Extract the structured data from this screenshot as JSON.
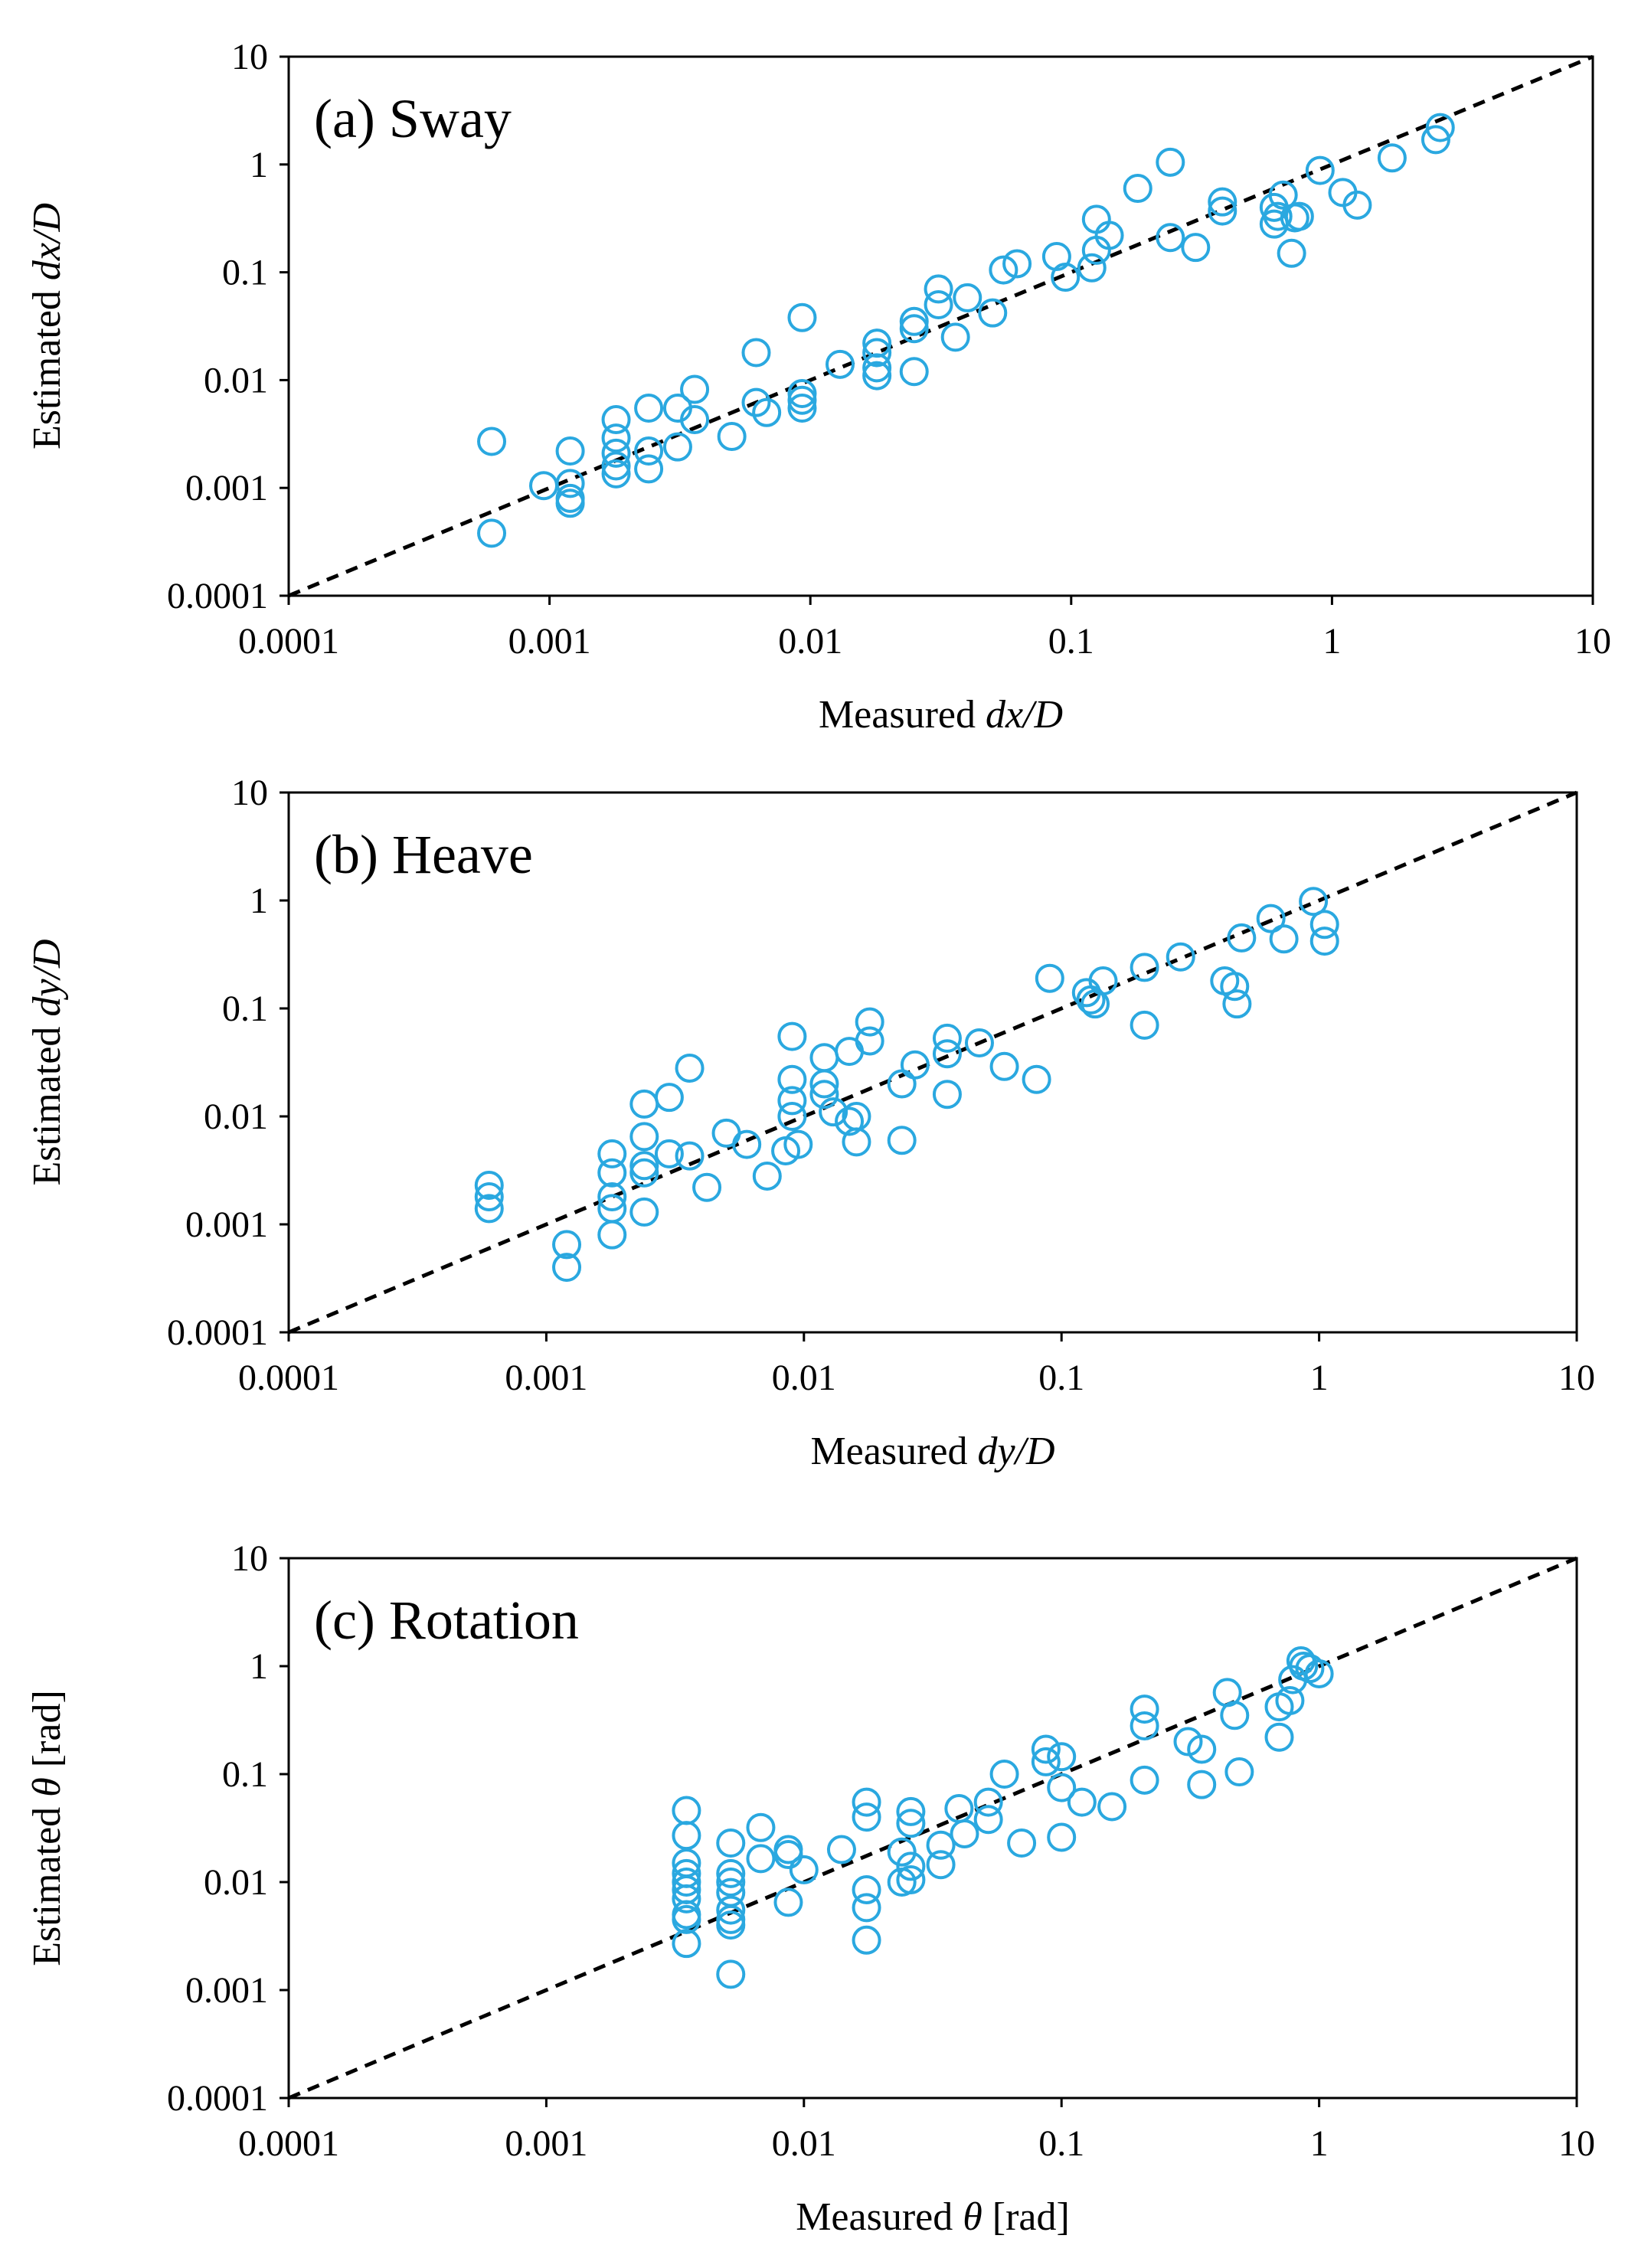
{
  "chart_data": [
    {
      "type": "scatter",
      "title": "(a) Sway",
      "xlabel": [
        "Measured ",
        "dx/D"
      ],
      "ylabel": [
        "Estimated ",
        "dx/D"
      ],
      "xscale": "log",
      "yscale": "log",
      "xlim": [
        0.0001,
        10
      ],
      "ylim": [
        0.0001,
        10
      ],
      "xticks": [
        "0.0001",
        "0.001",
        "0.01",
        "0.1",
        "1",
        "10"
      ],
      "yticks": [
        "0.0001",
        "0.001",
        "0.01",
        "0.1",
        "1",
        "10"
      ],
      "grid": false,
      "reference_line": "y = x (dashed)",
      "marker_color": "#2AA8E0",
      "x": [
        0.0006,
        0.0006,
        0.00095,
        0.0012,
        0.0012,
        0.0012,
        0.0012,
        0.0018,
        0.0018,
        0.0018,
        0.0018,
        0.0018,
        0.0024,
        0.0024,
        0.0024,
        0.0031,
        0.0031,
        0.0036,
        0.0036,
        0.005,
        0.0062,
        0.0062,
        0.0068,
        0.0093,
        0.0093,
        0.0093,
        0.0093,
        0.013,
        0.018,
        0.018,
        0.018,
        0.018,
        0.025,
        0.025,
        0.025,
        0.031,
        0.031,
        0.036,
        0.04,
        0.05,
        0.055,
        0.062,
        0.088,
        0.095,
        0.12,
        0.125,
        0.125,
        0.14,
        0.24,
        0.24,
        0.18,
        0.3,
        0.38,
        0.38,
        0.6,
        0.6,
        0.62,
        0.65,
        0.7,
        0.72,
        0.75,
        0.9,
        1.1,
        1.25,
        1.7,
        2.5,
        2.6
      ],
      "y": [
        0.0027,
        0.00038,
        0.00105,
        0.0022,
        0.0011,
        0.0008,
        0.00072,
        0.0043,
        0.0029,
        0.0021,
        0.0016,
        0.00135,
        0.0055,
        0.0022,
        0.0015,
        0.0055,
        0.0024,
        0.0082,
        0.0043,
        0.003,
        0.018,
        0.0062,
        0.005,
        0.038,
        0.0075,
        0.0065,
        0.0055,
        0.014,
        0.022,
        0.018,
        0.013,
        0.011,
        0.035,
        0.03,
        0.012,
        0.07,
        0.05,
        0.025,
        0.058,
        0.042,
        0.105,
        0.12,
        0.14,
        0.09,
        0.11,
        0.31,
        0.16,
        0.22,
        1.05,
        0.21,
        0.6,
        0.17,
        0.45,
        0.37,
        0.4,
        0.28,
        0.33,
        0.52,
        0.15,
        0.32,
        0.33,
        0.88,
        0.55,
        0.42,
        1.15,
        1.7,
        2.2
      ]
    },
    {
      "type": "scatter",
      "title": "(b) Heave",
      "xlabel": [
        "Measured ",
        "dy/D"
      ],
      "ylabel": [
        "Estimated ",
        "dy/D"
      ],
      "xscale": "log",
      "yscale": "log",
      "xlim": [
        0.0001,
        10
      ],
      "ylim": [
        0.0001,
        10
      ],
      "xticks": [
        "0.0001",
        "0.001",
        "0.01",
        "0.1",
        "1",
        "10"
      ],
      "yticks": [
        "0.0001",
        "0.001",
        "0.01",
        "0.1",
        "1",
        "10"
      ],
      "grid": false,
      "reference_line": "y = x (dashed)",
      "marker_color": "#2AA8E0",
      "x": [
        0.0006,
        0.0006,
        0.0006,
        0.0012,
        0.0012,
        0.0018,
        0.0018,
        0.0018,
        0.0018,
        0.0018,
        0.0024,
        0.0024,
        0.0024,
        0.0024,
        0.0024,
        0.003,
        0.003,
        0.0036,
        0.0036,
        0.0042,
        0.005,
        0.006,
        0.0072,
        0.0085,
        0.009,
        0.009,
        0.009,
        0.009,
        0.0095,
        0.012,
        0.012,
        0.012,
        0.013,
        0.015,
        0.015,
        0.016,
        0.016,
        0.018,
        0.018,
        0.024,
        0.024,
        0.027,
        0.036,
        0.036,
        0.036,
        0.048,
        0.06,
        0.08,
        0.09,
        0.125,
        0.13,
        0.135,
        0.145,
        0.21,
        0.21,
        0.29,
        0.43,
        0.47,
        0.48,
        0.5,
        0.65,
        0.73,
        0.95,
        1.05,
        1.05
      ],
      "y": [
        0.0023,
        0.0018,
        0.0014,
        0.00065,
        0.0004,
        0.0045,
        0.003,
        0.0018,
        0.0014,
        0.0008,
        0.013,
        0.0065,
        0.0035,
        0.003,
        0.0013,
        0.015,
        0.0045,
        0.028,
        0.0043,
        0.0022,
        0.007,
        0.0055,
        0.0028,
        0.0048,
        0.055,
        0.022,
        0.014,
        0.01,
        0.0055,
        0.035,
        0.02,
        0.016,
        0.011,
        0.04,
        0.009,
        0.01,
        0.0058,
        0.075,
        0.05,
        0.02,
        0.006,
        0.03,
        0.053,
        0.038,
        0.016,
        0.048,
        0.029,
        0.022,
        0.19,
        0.14,
        0.12,
        0.11,
        0.18,
        0.24,
        0.07,
        0.3,
        0.18,
        0.16,
        0.11,
        0.45,
        0.68,
        0.44,
        0.98,
        0.6,
        0.42
      ]
    },
    {
      "type": "scatter",
      "title": "(c) Rotation",
      "xlabel": [
        "Measured ",
        "θ",
        " [rad]"
      ],
      "ylabel": [
        "Estimated ",
        "θ",
        " [rad]"
      ],
      "xscale": "log",
      "yscale": "log",
      "xlim": [
        0.0001,
        10
      ],
      "ylim": [
        0.0001,
        10
      ],
      "xticks": [
        "0.0001",
        "0.001",
        "0.01",
        "0.1",
        "1",
        "10"
      ],
      "yticks": [
        "0.0001",
        "0.001",
        "0.01",
        "0.1",
        "1",
        "10"
      ],
      "grid": false,
      "reference_line": "y = x (dashed)",
      "marker_color": "#2AA8E0",
      "x": [
        0.0035,
        0.0035,
        0.0035,
        0.0035,
        0.0035,
        0.0035,
        0.0035,
        0.0035,
        0.0035,
        0.0035,
        0.0052,
        0.0052,
        0.0052,
        0.0052,
        0.0052,
        0.0052,
        0.0052,
        0.0052,
        0.0068,
        0.0068,
        0.0087,
        0.0087,
        0.0087,
        0.01,
        0.014,
        0.0175,
        0.0175,
        0.0175,
        0.0175,
        0.0175,
        0.024,
        0.024,
        0.026,
        0.026,
        0.026,
        0.026,
        0.034,
        0.034,
        0.04,
        0.042,
        0.052,
        0.052,
        0.06,
        0.07,
        0.087,
        0.087,
        0.1,
        0.1,
        0.1,
        0.12,
        0.157,
        0.21,
        0.21,
        0.21,
        0.31,
        0.35,
        0.35,
        0.44,
        0.47,
        0.49,
        0.7,
        0.7,
        0.77,
        0.79,
        0.85,
        0.87,
        0.92,
        1.0
      ],
      "y": [
        0.046,
        0.027,
        0.015,
        0.012,
        0.01,
        0.0085,
        0.007,
        0.005,
        0.0045,
        0.0027,
        0.023,
        0.012,
        0.01,
        0.008,
        0.0055,
        0.0045,
        0.004,
        0.0014,
        0.032,
        0.0165,
        0.02,
        0.018,
        0.0065,
        0.013,
        0.02,
        0.055,
        0.04,
        0.0085,
        0.0058,
        0.0029,
        0.019,
        0.01,
        0.045,
        0.035,
        0.014,
        0.0105,
        0.022,
        0.0145,
        0.048,
        0.028,
        0.055,
        0.038,
        0.1,
        0.023,
        0.17,
        0.13,
        0.145,
        0.075,
        0.026,
        0.055,
        0.05,
        0.4,
        0.28,
        0.088,
        0.2,
        0.17,
        0.08,
        0.57,
        0.35,
        0.105,
        0.42,
        0.22,
        0.48,
        0.75,
        1.12,
        1.0,
        0.95,
        0.85
      ]
    }
  ]
}
